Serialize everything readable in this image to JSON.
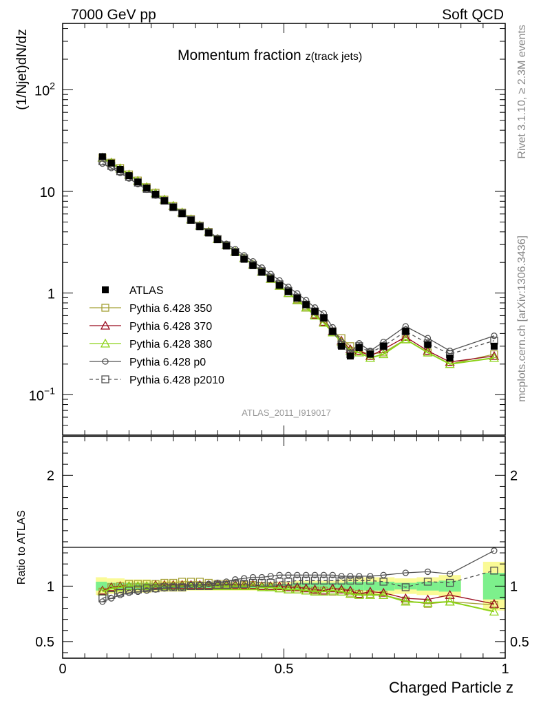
{
  "header": {
    "left": "7000 GeV pp",
    "right": "Soft QCD"
  },
  "side_labels": {
    "rivet": "Rivet 3.1.10, ≥ 2.3M events",
    "mcplots": "mcplots.cern.ch [arXiv:1306.3436]"
  },
  "chart_data": [
    {
      "type": "line",
      "title_main": "Momentum fraction ",
      "title_sub": "z(track jets)",
      "ylabel": "(1/Njet)dN/dz",
      "yscale": "log",
      "ylim": [
        0.04,
        450
      ],
      "xlim": [
        0,
        1
      ],
      "ytick_labels": [
        {
          "value": 100,
          "base": "10",
          "exp": "2"
        },
        {
          "value": 10,
          "base": "10",
          "exp": ""
        },
        {
          "value": 1,
          "base": "1",
          "exp": ""
        },
        {
          "value": 0.1,
          "base": "10",
          "exp": "−1"
        }
      ],
      "watermark": "ATLAS_2011_I919017",
      "legend_position": "center-left",
      "x": [
        0.09,
        0.11,
        0.13,
        0.15,
        0.17,
        0.19,
        0.21,
        0.23,
        0.25,
        0.27,
        0.29,
        0.31,
        0.33,
        0.35,
        0.37,
        0.39,
        0.41,
        0.43,
        0.45,
        0.47,
        0.49,
        0.51,
        0.53,
        0.55,
        0.57,
        0.59,
        0.61,
        0.63,
        0.65,
        0.67,
        0.695,
        0.725,
        0.775,
        0.825,
        0.875,
        0.975
      ],
      "series": [
        {
          "name": "ATLAS",
          "color": "#000000",
          "marker": "filled-square",
          "line": "none",
          "values": [
            22.0,
            19.0,
            16.5,
            14.3,
            12.4,
            10.8,
            9.4,
            8.1,
            7.0,
            6.05,
            5.2,
            4.5,
            3.9,
            3.35,
            2.9,
            2.5,
            2.15,
            1.86,
            1.6,
            1.38,
            1.19,
            1.03,
            0.89,
            0.77,
            0.66,
            0.57,
            0.42,
            0.3,
            0.24,
            0.29,
            0.25,
            0.3,
            0.42,
            0.31,
            0.23,
            0.3
          ]
        },
        {
          "name": "Pythia 6.428 350",
          "color": "#a5a035",
          "marker": "open-square",
          "line": "solid",
          "values": [
            21.5,
            19.2,
            17.0,
            14.7,
            12.8,
            11.0,
            9.7,
            8.3,
            7.2,
            6.2,
            5.35,
            4.6,
            4.0,
            3.4,
            2.95,
            2.55,
            2.2,
            1.9,
            1.62,
            1.38,
            1.18,
            1.0,
            0.87,
            0.74,
            0.62,
            0.52,
            0.42,
            0.36,
            0.3,
            0.27,
            0.25,
            0.26,
            0.35,
            0.26,
            0.2,
            0.25
          ]
        },
        {
          "name": "Pythia 6.428 370",
          "color": "#990a1e",
          "marker": "open-triangle",
          "line": "solid",
          "values": [
            21.5,
            19.2,
            16.8,
            14.6,
            12.7,
            11.0,
            9.6,
            8.3,
            7.2,
            6.2,
            5.3,
            4.6,
            4.0,
            3.4,
            2.95,
            2.55,
            2.2,
            1.9,
            1.62,
            1.38,
            1.18,
            1.0,
            0.85,
            0.72,
            0.61,
            0.52,
            0.42,
            0.34,
            0.28,
            0.27,
            0.24,
            0.28,
            0.37,
            0.27,
            0.21,
            0.24
          ]
        },
        {
          "name": "Pythia 6.428 380",
          "color": "#8cd219",
          "marker": "open-triangle",
          "line": "solid",
          "values": [
            21.5,
            19.2,
            16.8,
            14.6,
            12.7,
            11.0,
            9.6,
            8.3,
            7.2,
            6.2,
            5.3,
            4.6,
            4.0,
            3.4,
            2.95,
            2.55,
            2.2,
            1.9,
            1.62,
            1.38,
            1.18,
            1.0,
            0.85,
            0.72,
            0.6,
            0.51,
            0.41,
            0.33,
            0.27,
            0.26,
            0.23,
            0.25,
            0.35,
            0.26,
            0.2,
            0.23
          ]
        },
        {
          "name": "Pythia 6.428 p0",
          "color": "#505050",
          "marker": "open-circle",
          "line": "solid",
          "values": [
            18.8,
            17.0,
            15.2,
            13.4,
            11.8,
            10.4,
            9.1,
            8.0,
            7.0,
            6.1,
            5.3,
            4.6,
            4.05,
            3.5,
            3.05,
            2.7,
            2.35,
            2.05,
            1.78,
            1.54,
            1.33,
            1.15,
            0.99,
            0.85,
            0.72,
            0.63,
            0.46,
            0.33,
            0.26,
            0.32,
            0.27,
            0.33,
            0.47,
            0.36,
            0.27,
            0.38
          ]
        },
        {
          "name": "Pythia 6.428 p2010",
          "color": "#505050",
          "marker": "open-square",
          "line": "dashed",
          "values": [
            19.8,
            17.8,
            15.8,
            13.9,
            12.2,
            10.6,
            9.3,
            8.1,
            7.0,
            6.1,
            5.25,
            4.55,
            3.95,
            3.4,
            2.95,
            2.55,
            2.2,
            1.9,
            1.64,
            1.42,
            1.22,
            1.05,
            0.9,
            0.77,
            0.66,
            0.57,
            0.42,
            0.31,
            0.25,
            0.3,
            0.26,
            0.3,
            0.42,
            0.32,
            0.25,
            0.34
          ]
        }
      ]
    },
    {
      "type": "line",
      "ylabel": "Ratio to ATLAS",
      "xlabel": "Charged Particle z",
      "ylim": [
        0.35,
        2.35
      ],
      "xlim": [
        0,
        1
      ],
      "ytick_labels": [
        {
          "value": 2,
          "label": "2"
        },
        {
          "value": 1,
          "label": "1"
        },
        {
          "value": 0.5,
          "label": "0.5"
        }
      ],
      "xtick_labels": [
        {
          "value": 0,
          "label": "0"
        },
        {
          "value": 0.5,
          "label": "0.5"
        },
        {
          "value": 1,
          "label": "1"
        }
      ],
      "uncertainty_bands": {
        "x_low": [
          0.075,
          0.1,
          0.12,
          0.14,
          0.16,
          0.18,
          0.2,
          0.22,
          0.24,
          0.26,
          0.28,
          0.3,
          0.32,
          0.34,
          0.36,
          0.38,
          0.4,
          0.42,
          0.44,
          0.46,
          0.48,
          0.5,
          0.52,
          0.54,
          0.56,
          0.58,
          0.6,
          0.62,
          0.64,
          0.66,
          0.68,
          0.71,
          0.75,
          0.8,
          0.85,
          0.95
        ],
        "x_high": [
          0.1,
          0.12,
          0.14,
          0.16,
          0.18,
          0.2,
          0.22,
          0.24,
          0.26,
          0.28,
          0.3,
          0.32,
          0.34,
          0.36,
          0.38,
          0.4,
          0.42,
          0.44,
          0.46,
          0.48,
          0.5,
          0.52,
          0.54,
          0.56,
          0.58,
          0.6,
          0.62,
          0.64,
          0.66,
          0.68,
          0.71,
          0.75,
          0.8,
          0.85,
          0.9,
          1.0
        ],
        "stat_half_width": [
          0.04,
          0.03,
          0.03,
          0.03,
          0.03,
          0.03,
          0.03,
          0.02,
          0.02,
          0.02,
          0.02,
          0.02,
          0.02,
          0.02,
          0.02,
          0.02,
          0.02,
          0.02,
          0.02,
          0.02,
          0.02,
          0.02,
          0.03,
          0.03,
          0.03,
          0.03,
          0.03,
          0.03,
          0.04,
          0.04,
          0.04,
          0.04,
          0.03,
          0.04,
          0.05,
          0.12
        ],
        "total_half_width": [
          0.08,
          0.07,
          0.07,
          0.06,
          0.06,
          0.06,
          0.05,
          0.05,
          0.05,
          0.05,
          0.04,
          0.04,
          0.04,
          0.04,
          0.04,
          0.04,
          0.04,
          0.04,
          0.04,
          0.04,
          0.04,
          0.04,
          0.05,
          0.05,
          0.05,
          0.05,
          0.05,
          0.06,
          0.07,
          0.08,
          0.08,
          0.08,
          0.07,
          0.08,
          0.1,
          0.22
        ],
        "colors": {
          "stat": "#7df08c",
          "total": "#fafa96"
        }
      },
      "x": [
        0.09,
        0.11,
        0.13,
        0.15,
        0.17,
        0.19,
        0.21,
        0.23,
        0.25,
        0.27,
        0.29,
        0.31,
        0.33,
        0.35,
        0.37,
        0.39,
        0.41,
        0.43,
        0.45,
        0.47,
        0.49,
        0.51,
        0.53,
        0.55,
        0.57,
        0.59,
        0.61,
        0.63,
        0.65,
        0.67,
        0.695,
        0.725,
        0.775,
        0.825,
        0.875,
        0.975
      ],
      "series": [
        {
          "name": "Pythia 6.428 350",
          "color": "#a5a035",
          "marker": "open-square",
          "line": "solid",
          "values": [
            0.95,
            0.99,
            1.0,
            1.02,
            1.02,
            1.02,
            1.02,
            1.03,
            1.03,
            1.04,
            1.04,
            1.04,
            1.03,
            1.02,
            1.02,
            1.02,
            1.01,
            1.01,
            1.0,
            0.99,
            0.98,
            0.97,
            0.97,
            0.96,
            0.96,
            0.96,
            0.95,
            0.95,
            0.94,
            0.93,
            0.93,
            0.92,
            0.87,
            0.84,
            0.86,
            0.83
          ]
        },
        {
          "name": "Pythia 6.428 370",
          "color": "#990a1e",
          "marker": "open-triangle",
          "line": "solid",
          "values": [
            0.96,
            0.99,
            1.0,
            1.0,
            1.0,
            1.0,
            1.01,
            1.01,
            1.01,
            1.01,
            1.01,
            1.01,
            1.01,
            1.01,
            1.01,
            1.01,
            1.01,
            1.01,
            1.0,
            1.0,
            1.0,
            0.99,
            0.99,
            0.98,
            0.97,
            0.96,
            0.98,
            0.97,
            0.96,
            0.93,
            0.95,
            0.94,
            0.89,
            0.88,
            0.92,
            0.84
          ]
        },
        {
          "name": "Pythia 6.428 380",
          "color": "#8cd219",
          "marker": "open-triangle",
          "line": "solid",
          "values": [
            0.95,
            0.98,
            0.99,
            1.0,
            1.0,
            1.0,
            1.0,
            1.0,
            1.0,
            1.0,
            1.0,
            1.0,
            1.0,
            1.0,
            1.0,
            1.0,
            1.0,
            1.0,
            0.99,
            0.99,
            0.98,
            0.97,
            0.97,
            0.96,
            0.95,
            0.95,
            0.96,
            0.95,
            0.93,
            0.92,
            0.92,
            0.92,
            0.86,
            0.85,
            0.86,
            0.77
          ]
        },
        {
          "name": "Pythia 6.428 p0",
          "color": "#505050",
          "marker": "open-circle",
          "line": "solid",
          "values": [
            0.86,
            0.89,
            0.92,
            0.94,
            0.95,
            0.96,
            0.97,
            0.98,
            0.99,
            0.99,
            1.01,
            1.01,
            1.02,
            1.03,
            1.04,
            1.06,
            1.07,
            1.08,
            1.08,
            1.09,
            1.1,
            1.1,
            1.1,
            1.1,
            1.1,
            1.1,
            1.1,
            1.09,
            1.09,
            1.09,
            1.09,
            1.1,
            1.12,
            1.13,
            1.11,
            1.32
          ]
        },
        {
          "name": "Pythia 6.428 p2010",
          "color": "#505050",
          "marker": "open-square",
          "line": "dashed",
          "values": [
            0.89,
            0.92,
            0.94,
            0.96,
            0.97,
            0.98,
            0.98,
            0.99,
            0.99,
            0.99,
            1.0,
            1.0,
            1.0,
            1.01,
            1.01,
            1.02,
            1.02,
            1.03,
            1.03,
            1.03,
            1.04,
            1.04,
            1.05,
            1.05,
            1.05,
            1.05,
            1.05,
            1.05,
            1.05,
            1.05,
            1.05,
            1.04,
            0.99,
            1.04,
            1.03,
            1.14
          ]
        }
      ]
    }
  ]
}
